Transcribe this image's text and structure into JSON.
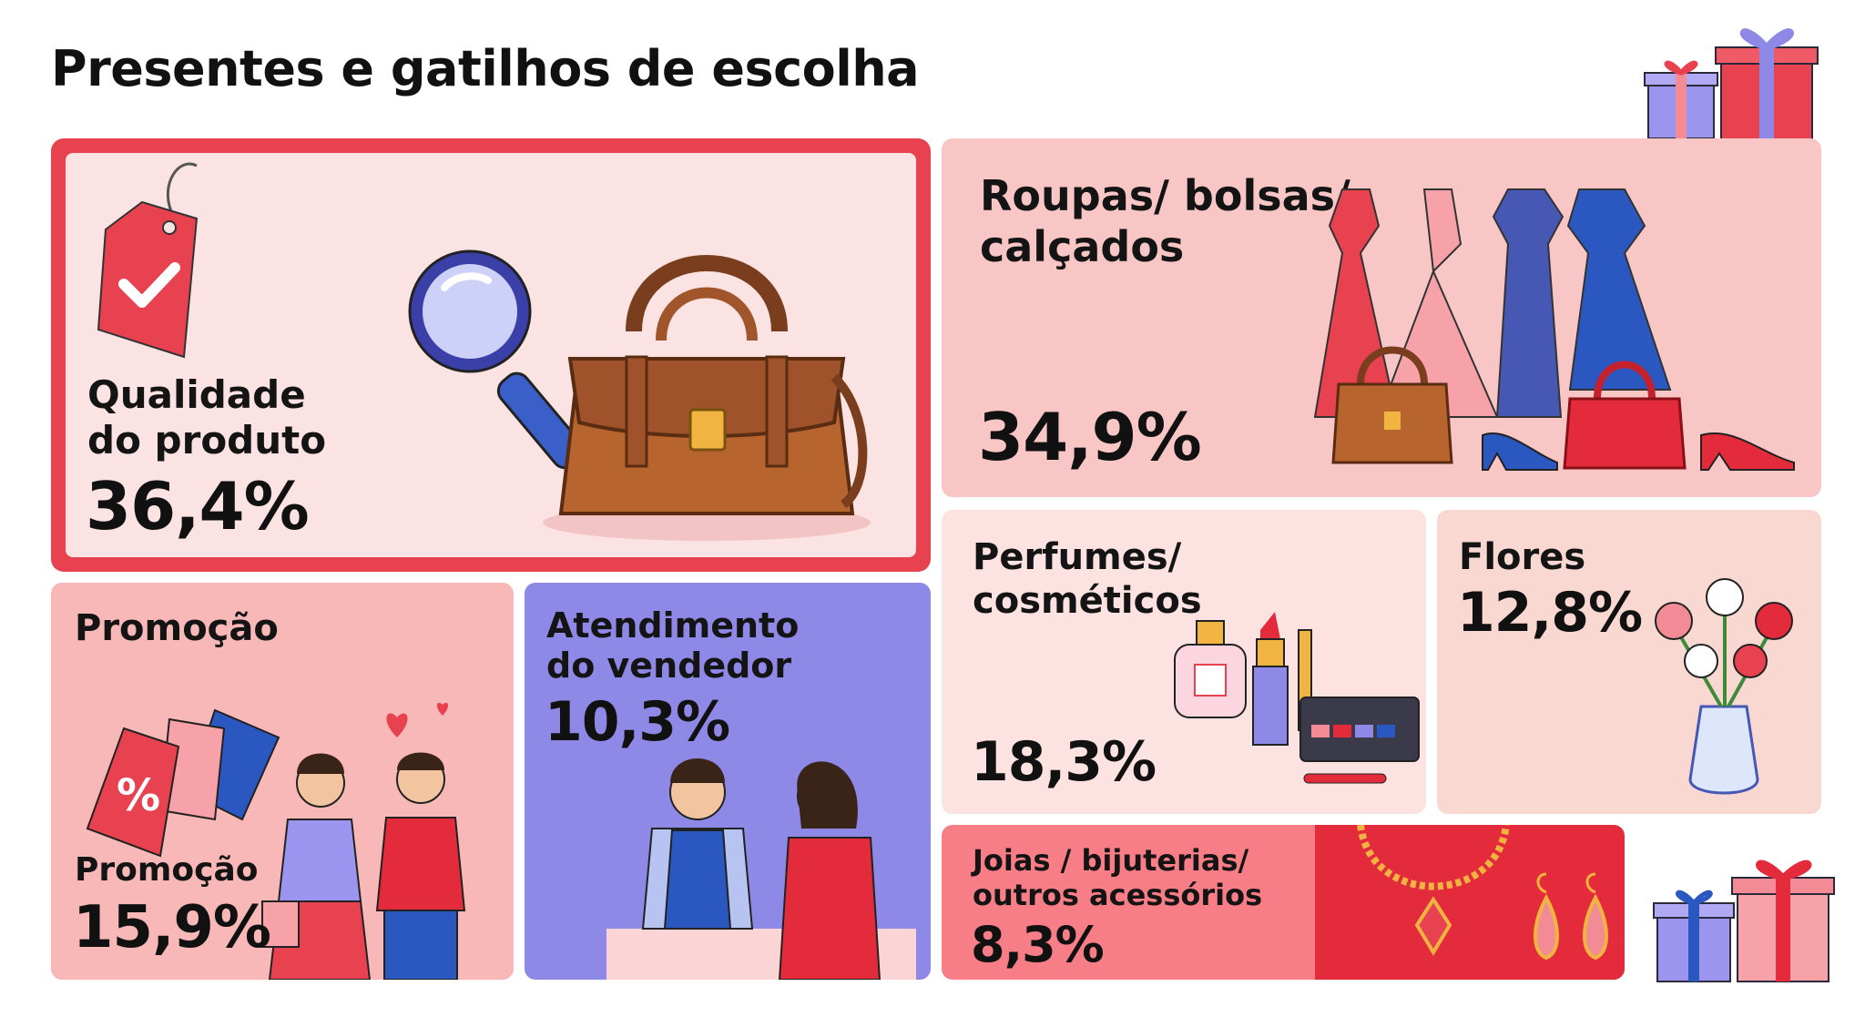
{
  "title": "Presentes e gatilhos de escolha",
  "cards": {
    "quality": {
      "label_line1": "Qualidade",
      "label_line2": "do produto",
      "value": "36,4%"
    },
    "clothes": {
      "label_line1": "Roupas/ bolsas/",
      "label_line2": "calçados",
      "value": "34,9%"
    },
    "promo": {
      "heading": "Promoção",
      "label": "Promoção",
      "value": "15,9%"
    },
    "seller": {
      "label_line1": "Atendimento",
      "label_line2": "do vendedor",
      "value": "10,3%"
    },
    "perfume": {
      "label_line1": "Perfumes/",
      "label_line2": "cosméticos",
      "value": "18,3%"
    },
    "flowers": {
      "label": "Flores",
      "value": "12,8%"
    },
    "jewelry": {
      "label_line1": "Joias / bijuterias/",
      "label_line2": "outros acessórios",
      "value": "8,3%"
    }
  },
  "colors": {
    "accent_red": "#e8414f",
    "card_pink": "#f9c6c6",
    "card_violet": "#8e88e6",
    "jewelry_red": "#e42b3b"
  },
  "icons": [
    "gift-icon",
    "price-tag-icon",
    "magnifier-icon",
    "handbag-icon",
    "dress-icon",
    "shoe-icon",
    "discount-tag-icon",
    "heart-icon",
    "shopper-icon",
    "seller-icon",
    "perfume-icon",
    "lipstick-icon",
    "palette-icon",
    "flower-vase-icon",
    "necklace-icon",
    "earring-icon"
  ]
}
